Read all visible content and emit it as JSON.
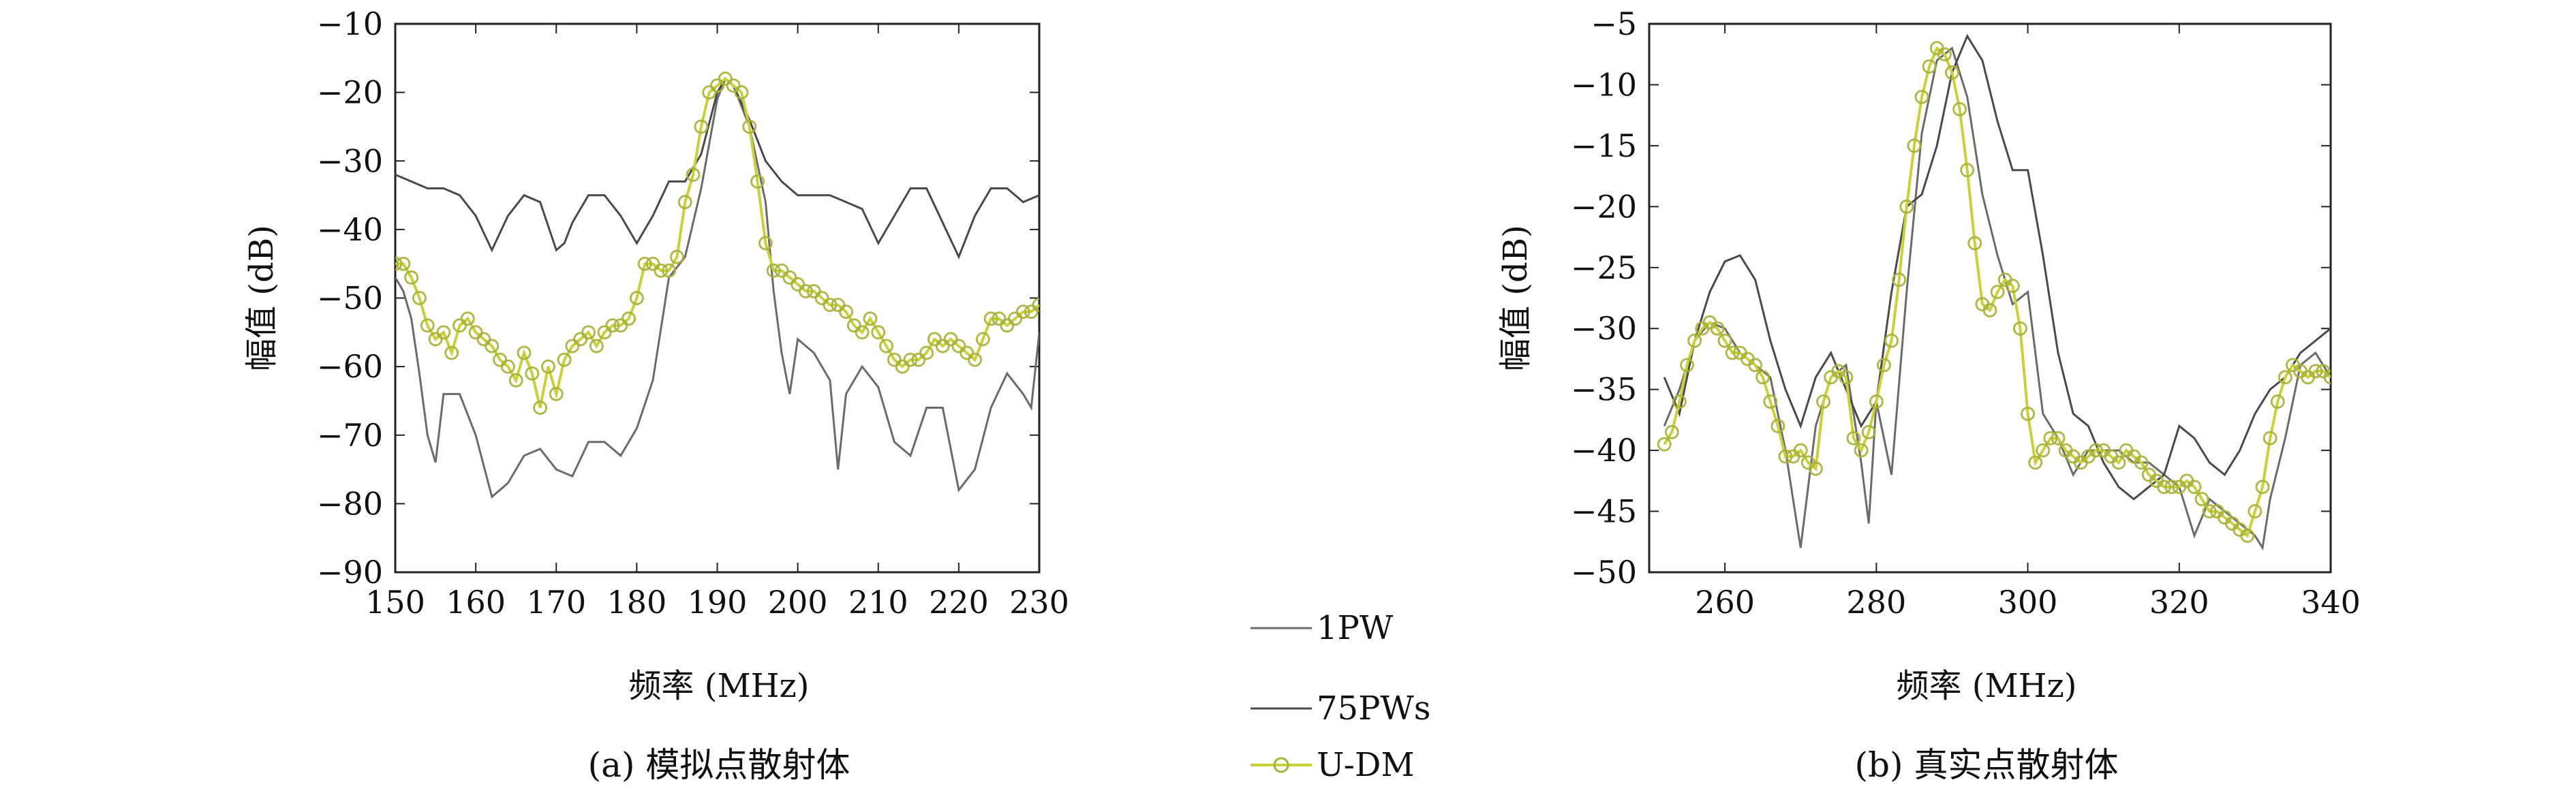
{
  "legend": [
    {
      "label": "1PW",
      "color": "#6b6b6b",
      "marker": "none"
    },
    {
      "label": "75PWs",
      "color": "#4a4a4a",
      "marker": "none"
    },
    {
      "label": "U-DM",
      "color": "#c8d13a",
      "marker": "circle"
    }
  ],
  "accent_colors": {
    "ground_truth_red": "#e06a5a",
    "ground_truth_blue": "#3a8fd6"
  },
  "chart_data": [
    {
      "type": "line",
      "caption": "(a) 模拟点散射体",
      "xlabel": "频率 (MHz)",
      "ylabel": "幅值 (dB)",
      "xlim": [
        150,
        230
      ],
      "ylim": [
        -90,
        -10
      ],
      "xticks": [
        150,
        160,
        170,
        180,
        190,
        200,
        210,
        220,
        230
      ],
      "yticks": [
        -10,
        -20,
        -30,
        -40,
        -50,
        -60,
        -70,
        -80,
        -90
      ],
      "xtick_labels": [
        "150",
        "160",
        "170",
        "180",
        "190",
        "200",
        "210",
        "220",
        "230"
      ],
      "ytick_labels": [
        "−10",
        "−20",
        "−30",
        "−40",
        "−50",
        "−60",
        "−70",
        "−80",
        "−90"
      ],
      "grid": false,
      "series": [
        {
          "name": "1PW",
          "color": "#6b6b6b",
          "x": [
            150,
            151,
            152,
            153,
            154,
            155,
            156,
            158,
            160,
            162,
            164,
            166,
            168,
            170,
            172,
            174,
            176,
            178,
            180,
            182,
            184,
            186,
            188,
            190,
            191,
            192,
            194,
            196,
            197,
            198,
            199,
            200,
            202,
            204,
            205,
            206,
            208,
            210,
            212,
            214,
            216,
            218,
            220,
            222,
            224,
            226,
            228,
            229,
            230
          ],
          "y": [
            -47,
            -49,
            -53,
            -61,
            -70,
            -74,
            -64,
            -64,
            -70,
            -79,
            -77,
            -73,
            -72,
            -75,
            -76,
            -71,
            -71,
            -73,
            -69,
            -62,
            -47,
            -44,
            -34,
            -21,
            -18,
            -19,
            -25,
            -36,
            -49,
            -58,
            -64,
            -56,
            -58,
            -62,
            -75,
            -64,
            -60,
            -63,
            -71,
            -73,
            -66,
            -66,
            -78,
            -75,
            -66,
            -61,
            -64,
            -66,
            -55
          ]
        },
        {
          "name": "75PWs",
          "color": "#4a4a4a",
          "x": [
            150,
            152,
            154,
            156,
            158,
            160,
            162,
            164,
            166,
            168,
            170,
            171,
            172,
            174,
            176,
            178,
            180,
            182,
            184,
            186,
            188,
            190,
            191,
            192,
            194,
            196,
            198,
            200,
            202,
            204,
            206,
            208,
            210,
            212,
            214,
            216,
            218,
            220,
            222,
            224,
            226,
            228,
            230
          ],
          "y": [
            -32,
            -33,
            -34,
            -34,
            -35,
            -38,
            -43,
            -38,
            -35,
            -36,
            -43,
            -42,
            -39,
            -35,
            -35,
            -38,
            -42,
            -38,
            -33,
            -33,
            -29,
            -20,
            -18,
            -19,
            -24,
            -30,
            -33,
            -35,
            -35,
            -35,
            -36,
            -37,
            -42,
            -38,
            -34,
            -34,
            -39,
            -44,
            -38,
            -34,
            -34,
            -36,
            -35
          ]
        },
        {
          "name": "U-DM",
          "color": "#c8d13a",
          "marker": "circle",
          "x": [
            150,
            151,
            152,
            153,
            154,
            155,
            156,
            157,
            158,
            159,
            160,
            161,
            162,
            163,
            164,
            165,
            166,
            167,
            168,
            169,
            170,
            171,
            172,
            173,
            174,
            175,
            176,
            177,
            178,
            179,
            180,
            181,
            182,
            183,
            184,
            185,
            186,
            187,
            188,
            189,
            190,
            191,
            192,
            193,
            194,
            195,
            196,
            197,
            198,
            199,
            200,
            201,
            202,
            203,
            204,
            205,
            206,
            207,
            208,
            209,
            210,
            211,
            212,
            213,
            214,
            215,
            216,
            217,
            218,
            219,
            220,
            221,
            222,
            223,
            224,
            225,
            226,
            227,
            228,
            229,
            230
          ],
          "y": [
            -45,
            -45,
            -47,
            -50,
            -54,
            -56,
            -55,
            -58,
            -54,
            -53,
            -55,
            -56,
            -57,
            -59,
            -60,
            -62,
            -58,
            -61,
            -66,
            -60,
            -64,
            -59,
            -57,
            -56,
            -55,
            -57,
            -55,
            -54,
            -54,
            -53,
            -50,
            -45,
            -45,
            -46,
            -46,
            -44,
            -36,
            -32,
            -25,
            -20,
            -19,
            -18,
            -19,
            -20,
            -25,
            -33,
            -42,
            -46,
            -46,
            -47,
            -48,
            -49,
            -49,
            -50,
            -51,
            -51,
            -52,
            -54,
            -55,
            -53,
            -55,
            -57,
            -59,
            -60,
            -59,
            -59,
            -58,
            -56,
            -57,
            -56,
            -57,
            -58,
            -59,
            -56,
            -53,
            -53,
            -54,
            -53,
            -52,
            -52,
            -51
          ]
        }
      ]
    },
    {
      "type": "line",
      "caption": "(b) 真实点散射体",
      "xlabel": "频率 (MHz)",
      "ylabel": "幅值 (dB)",
      "xlim": [
        250,
        340
      ],
      "ylim": [
        -50,
        -5
      ],
      "xticks": [
        260,
        280,
        300,
        320,
        340
      ],
      "yticks": [
        -5,
        -10,
        -15,
        -20,
        -25,
        -30,
        -35,
        -40,
        -45,
        -50
      ],
      "xtick_labels": [
        "260",
        "280",
        "300",
        "320",
        "340"
      ],
      "ytick_labels": [
        "−5",
        "−10",
        "−15",
        "−20",
        "−25",
        "−30",
        "−35",
        "−40",
        "−45",
        "−50"
      ],
      "grid": false,
      "series": [
        {
          "name": "1PW",
          "color": "#6b6b6b",
          "x": [
            252,
            254,
            256,
            258,
            260,
            262,
            264,
            266,
            268,
            270,
            272,
            274,
            276,
            278,
            279,
            280,
            282,
            284,
            286,
            288,
            290,
            292,
            294,
            296,
            298,
            300,
            302,
            304,
            306,
            308,
            310,
            312,
            314,
            316,
            318,
            320,
            322,
            324,
            326,
            328,
            330,
            331,
            332,
            334,
            336,
            338,
            340
          ],
          "y": [
            -38,
            -35,
            -31,
            -29.5,
            -30,
            -32,
            -33,
            -34,
            -40,
            -48,
            -38,
            -34,
            -33,
            -41,
            -46,
            -36,
            -42,
            -27,
            -14,
            -8,
            -7,
            -11,
            -19,
            -24,
            -28,
            -27,
            -37,
            -39,
            -42,
            -40,
            -40,
            -40,
            -41,
            -41,
            -42,
            -43,
            -47,
            -44,
            -45,
            -46,
            -47,
            -48,
            -44,
            -39,
            -33,
            -32,
            -34
          ]
        },
        {
          "name": "75PWs",
          "color": "#4a4a4a",
          "x": [
            252,
            254,
            256,
            258,
            260,
            262,
            264,
            266,
            268,
            270,
            272,
            274,
            276,
            278,
            280,
            282,
            284,
            286,
            288,
            290,
            292,
            294,
            296,
            298,
            300,
            302,
            304,
            306,
            308,
            310,
            312,
            314,
            316,
            318,
            320,
            322,
            324,
            326,
            328,
            330,
            332,
            334,
            336,
            338,
            340
          ],
          "y": [
            -34,
            -37,
            -31,
            -27,
            -24.5,
            -24,
            -26,
            -31,
            -35,
            -38,
            -34,
            -32,
            -35,
            -38,
            -36,
            -27,
            -20,
            -19,
            -15,
            -9,
            -6,
            -8,
            -13,
            -17,
            -17,
            -24,
            -32,
            -37,
            -38,
            -41,
            -43,
            -44,
            -43,
            -42,
            -38,
            -39,
            -41,
            -42,
            -40,
            -37,
            -35,
            -34,
            -32,
            -31,
            -30
          ]
        },
        {
          "name": "U-DM",
          "color": "#c8d13a",
          "marker": "circle",
          "x": [
            252,
            253,
            254,
            255,
            256,
            257,
            258,
            259,
            260,
            261,
            262,
            263,
            264,
            265,
            266,
            267,
            268,
            269,
            270,
            271,
            272,
            273,
            274,
            275,
            276,
            277,
            278,
            279,
            280,
            281,
            282,
            283,
            284,
            285,
            286,
            287,
            288,
            289,
            290,
            291,
            292,
            293,
            294,
            295,
            296,
            297,
            298,
            299,
            300,
            301,
            302,
            303,
            304,
            305,
            306,
            307,
            308,
            309,
            310,
            311,
            312,
            313,
            314,
            315,
            316,
            317,
            318,
            319,
            320,
            321,
            322,
            323,
            324,
            325,
            326,
            327,
            328,
            329,
            330,
            331,
            332,
            333,
            334,
            335,
            336,
            337,
            338,
            339,
            340
          ],
          "y": [
            -39.5,
            -38.5,
            -36,
            -33,
            -31,
            -30,
            -29.5,
            -30,
            -31,
            -32,
            -32,
            -32.5,
            -33,
            -34,
            -36,
            -38,
            -40.5,
            -40.5,
            -40,
            -41,
            -41.5,
            -36,
            -34,
            -33.5,
            -34,
            -39,
            -40,
            -38.5,
            -36,
            -33,
            -31,
            -26,
            -20,
            -15,
            -11,
            -8.5,
            -7,
            -7.5,
            -9,
            -12,
            -17,
            -23,
            -28,
            -28.5,
            -27,
            -26,
            -26.5,
            -30,
            -37,
            -41,
            -40,
            -39,
            -39,
            -40,
            -40.5,
            -41,
            -40.5,
            -40,
            -40,
            -40.5,
            -41,
            -40,
            -40.5,
            -41,
            -42,
            -42.5,
            -43,
            -43,
            -43,
            -42.5,
            -43,
            -44,
            -45,
            -45,
            -45.5,
            -46,
            -46.5,
            -47,
            -45,
            -43,
            -39,
            -36,
            -34,
            -33,
            -33.5,
            -34,
            -33.5,
            -33.5,
            -34
          ]
        }
      ]
    }
  ]
}
